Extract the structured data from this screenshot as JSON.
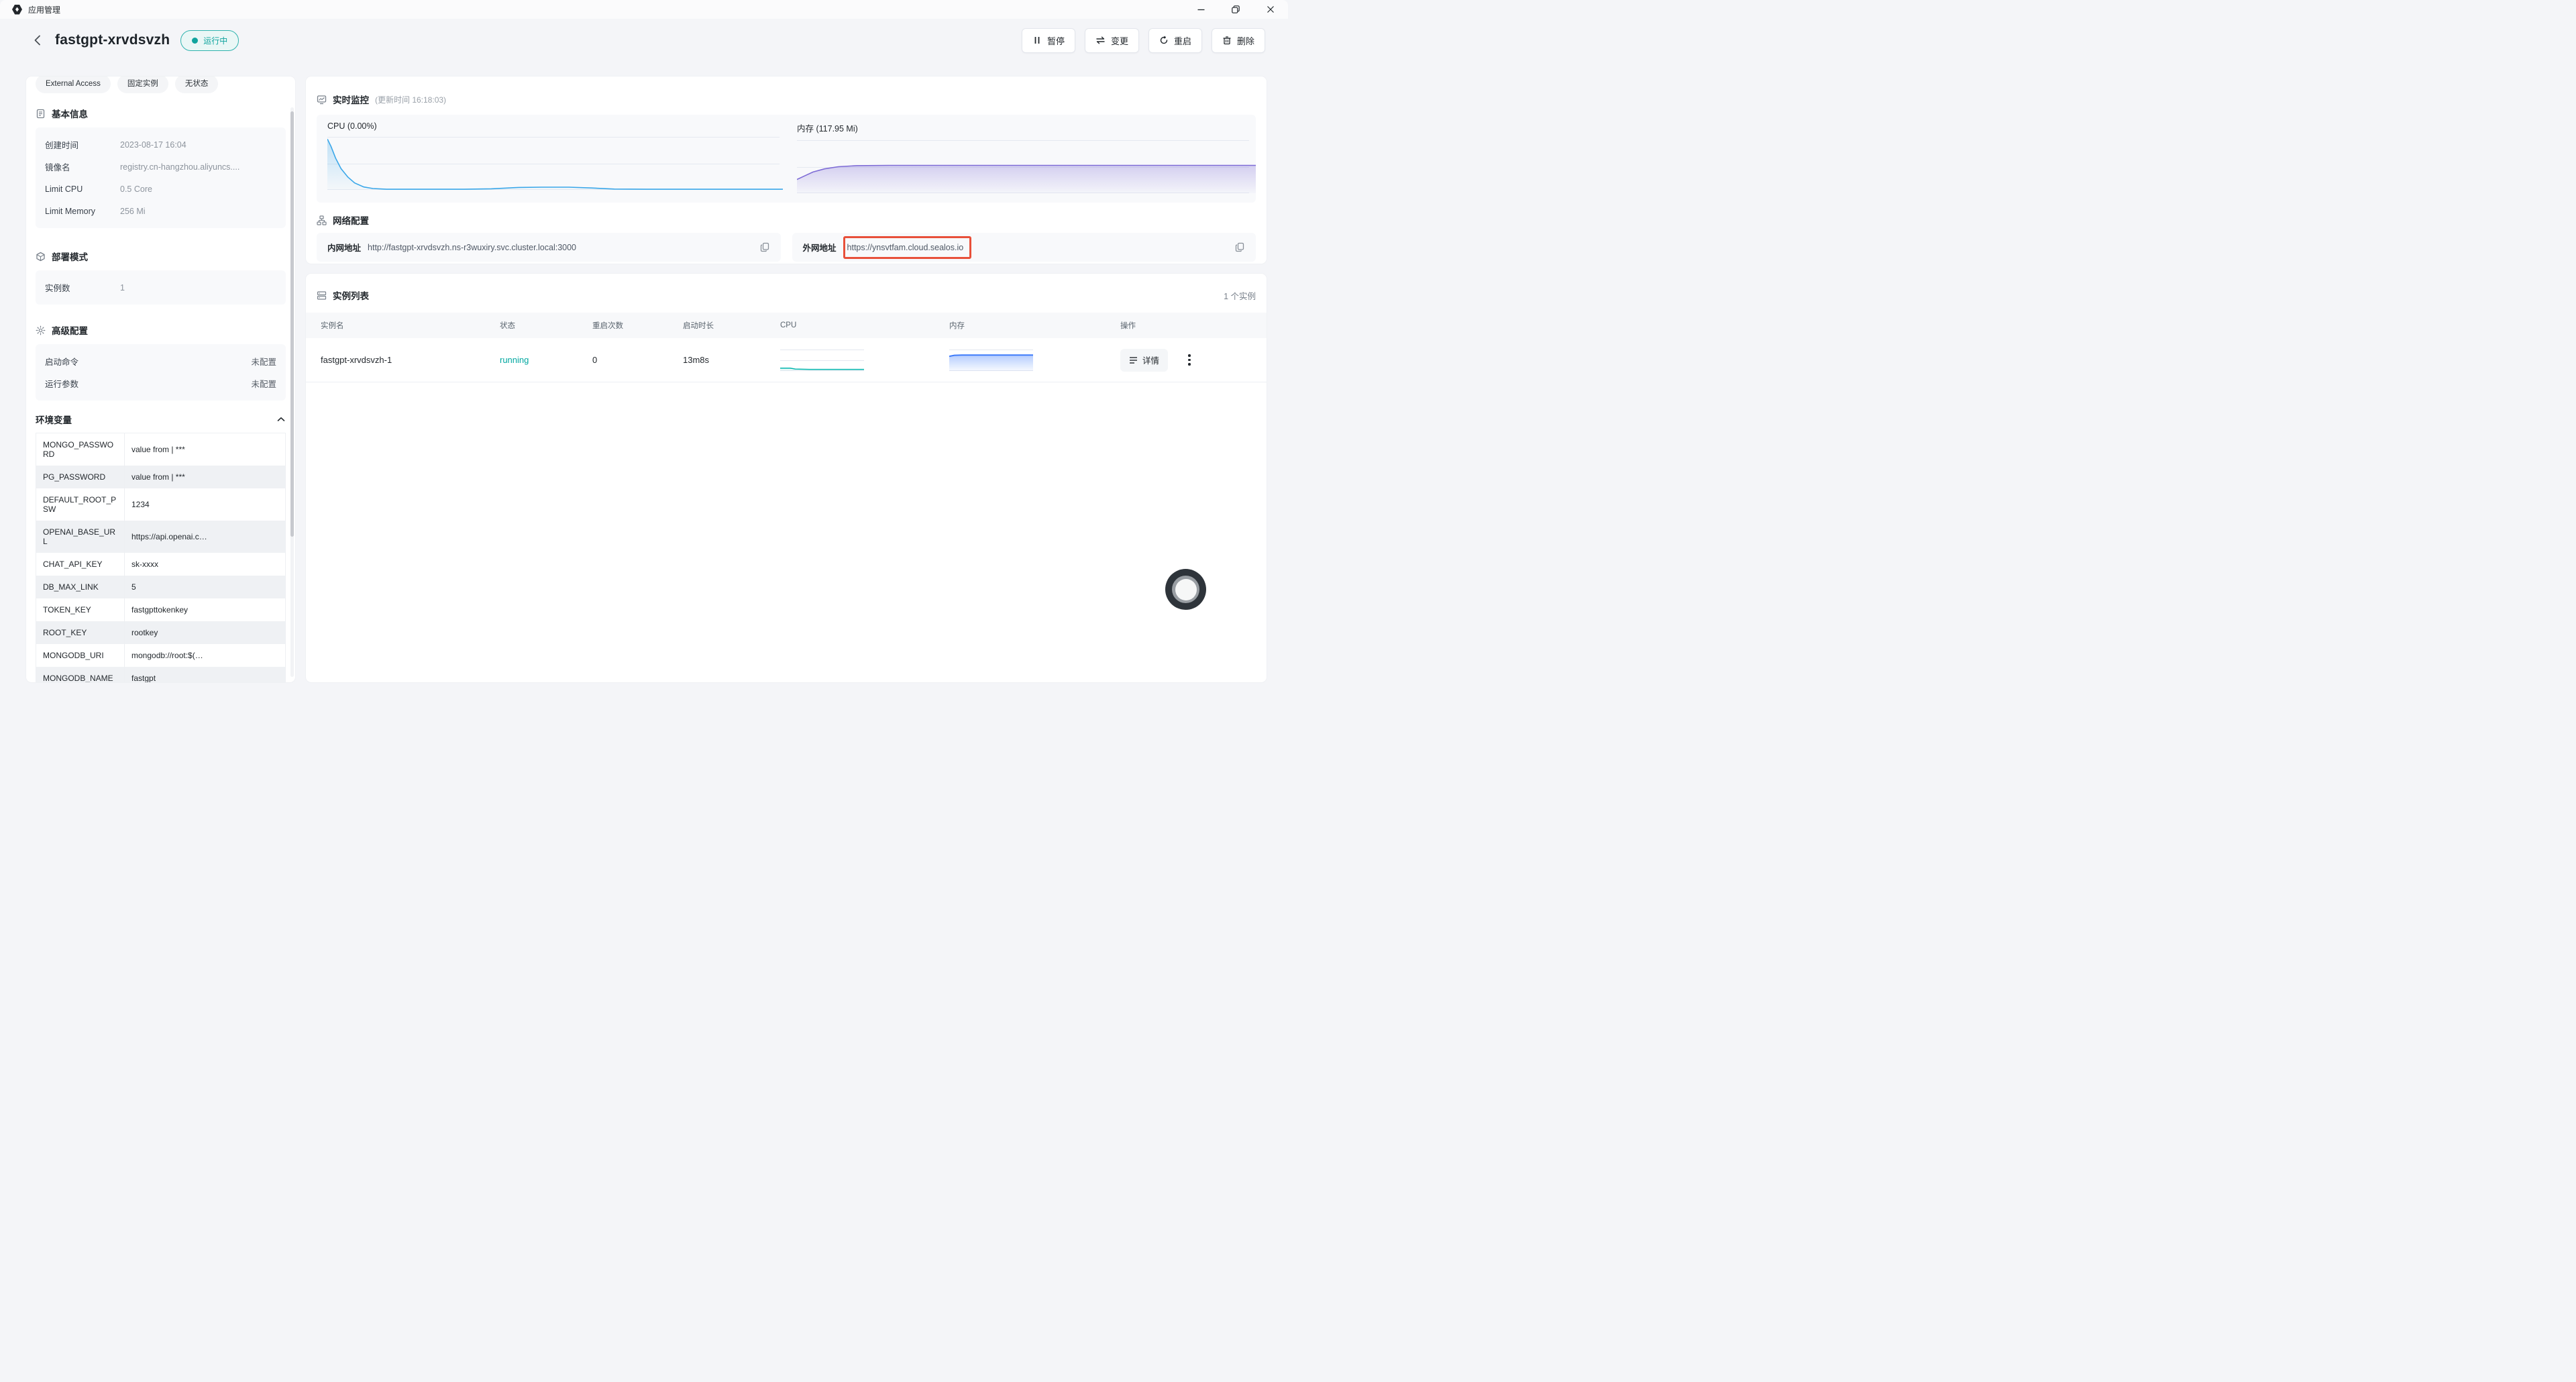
{
  "window": {
    "title": "应用管理"
  },
  "header": {
    "app_name": "fastgpt-xrvdsvzh",
    "status_label": "运行中"
  },
  "actions": {
    "pause": "暂停",
    "change": "变更",
    "restart": "重启",
    "delete": "删除"
  },
  "sidebar": {
    "tags": [
      "External Access",
      "固定实例",
      "无状态"
    ],
    "basic_info": {
      "title": "基本信息",
      "rows": [
        {
          "label": "创建时间",
          "value": "2023-08-17 16:04"
        },
        {
          "label": "镜像名",
          "value": "registry.cn-hangzhou.aliyuncs...."
        },
        {
          "label": "Limit CPU",
          "value": "0.5 Core"
        },
        {
          "label": "Limit Memory",
          "value": "256 Mi"
        }
      ]
    },
    "deploy_mode": {
      "title": "部署模式",
      "rows": [
        {
          "label": "实例数",
          "value": "1"
        }
      ]
    },
    "advanced": {
      "title": "高级配置",
      "rows": [
        {
          "label": "启动命令",
          "value": "未配置"
        },
        {
          "label": "运行参数",
          "value": "未配置"
        }
      ]
    },
    "env": {
      "title": "环境变量",
      "rows": [
        {
          "key": "MONGO_PASSWORD",
          "value": "value from | ***"
        },
        {
          "key": "PG_PASSWORD",
          "value": "value from | ***"
        },
        {
          "key": "DEFAULT_ROOT_PSW",
          "value": "1234"
        },
        {
          "key": "OPENAI_BASE_URL",
          "value": "https://api.openai.c…"
        },
        {
          "key": "CHAT_API_KEY",
          "value": "sk-xxxx"
        },
        {
          "key": "DB_MAX_LINK",
          "value": "5"
        },
        {
          "key": "TOKEN_KEY",
          "value": "fastgpttokenkey"
        },
        {
          "key": "ROOT_KEY",
          "value": "rootkey"
        },
        {
          "key": "MONGODB_URI",
          "value": "mongodb://root:$(…"
        },
        {
          "key": "MONGODB_NAME",
          "value": "fastgpt"
        }
      ]
    }
  },
  "monitor": {
    "title": "实时监控",
    "subtitle": "(更新时间 16:18:03)",
    "cpu_label": "CPU (0.00%)",
    "mem_label": "内存 (117.95 Mi)"
  },
  "network": {
    "title": "网络配置",
    "internal_label": "内网地址",
    "internal_url": "http://fastgpt-xrvdsvzh.ns-r3wuxiry.svc.cluster.local:3000",
    "external_label": "外网地址",
    "external_url": "https://ynsvtfam.cloud.sealos.io"
  },
  "instances": {
    "title": "实例列表",
    "count_text": "1 个实例",
    "columns": [
      "实例名",
      "状态",
      "重启次数",
      "启动时长",
      "CPU",
      "内存",
      "操作"
    ],
    "rows": [
      {
        "name": "fastgpt-xrvdsvzh-1",
        "status": "running",
        "restarts": "0",
        "uptime": "13m8s",
        "detail_label": "详情"
      }
    ]
  },
  "colors": {
    "status_teal": "#0FA49E",
    "annotation_red": "#E8503A",
    "cpu_line": "#3AA7E9",
    "memory_line": "#7E6CD6",
    "cpu_spark": "#00B5AD",
    "memory_spark": "#3E7BFA"
  },
  "chart_data": [
    {
      "id": "cpu-monitor",
      "type": "area",
      "title": "CPU (0.00%)",
      "current_value": "0.00%",
      "color": "#3AA7E9",
      "grid": true,
      "legend": false,
      "ylim_note": "normalized 0-1 of plot height",
      "points": [
        [
          0,
          0.96
        ],
        [
          0.008,
          0.82
        ],
        [
          0.018,
          0.6
        ],
        [
          0.03,
          0.4
        ],
        [
          0.045,
          0.24
        ],
        [
          0.06,
          0.13
        ],
        [
          0.08,
          0.055
        ],
        [
          0.1,
          0.025
        ],
        [
          0.13,
          0.012
        ],
        [
          0.3,
          0.012
        ],
        [
          0.36,
          0.02
        ],
        [
          0.42,
          0.045
        ],
        [
          0.47,
          0.05
        ],
        [
          0.53,
          0.05
        ],
        [
          0.58,
          0.035
        ],
        [
          0.63,
          0.015
        ],
        [
          0.7,
          0.012
        ],
        [
          1,
          0.012
        ]
      ]
    },
    {
      "id": "memory-monitor",
      "type": "area",
      "title": "内存 (117.95 Mi)",
      "current_value": "117.95 Mi",
      "color": "#7E6CD6",
      "grid": true,
      "legend": false,
      "ylim_note": "normalized 0-1 of plot height",
      "points": [
        [
          0,
          0.26
        ],
        [
          0.015,
          0.32
        ],
        [
          0.035,
          0.4
        ],
        [
          0.06,
          0.46
        ],
        [
          0.09,
          0.5
        ],
        [
          0.13,
          0.52
        ],
        [
          0.2,
          0.525
        ],
        [
          1,
          0.525
        ]
      ]
    },
    {
      "id": "cpu-spark-row1",
      "type": "area",
      "title": "instance CPU sparkline",
      "color": "#00B5AD",
      "grid": true,
      "legend": false,
      "points": [
        [
          0,
          0.13
        ],
        [
          0.12,
          0.13
        ],
        [
          0.18,
          0.09
        ],
        [
          0.35,
          0.075
        ],
        [
          1,
          0.075
        ]
      ]
    },
    {
      "id": "memory-spark-row1",
      "type": "area",
      "title": "instance memory sparkline",
      "color": "#3E7BFA",
      "grid": true,
      "legend": false,
      "points": [
        [
          0,
          0.68
        ],
        [
          0.06,
          0.73
        ],
        [
          0.15,
          0.74
        ],
        [
          1,
          0.74
        ]
      ]
    }
  ]
}
